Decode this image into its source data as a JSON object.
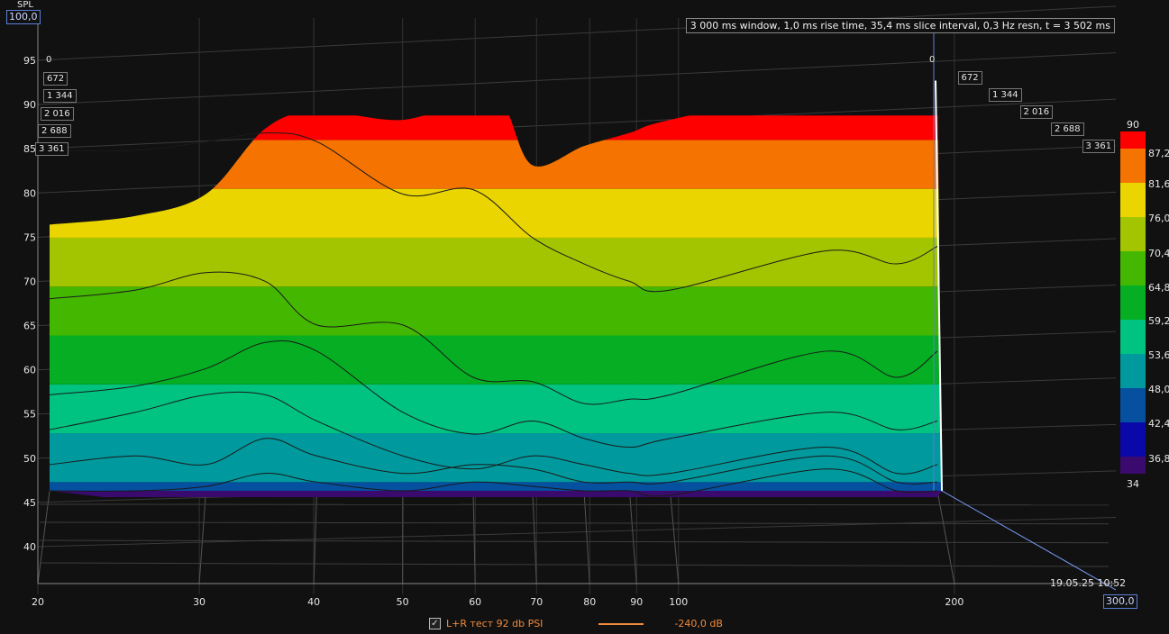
{
  "chart_data": {
    "type": "area",
    "title": "3 000 ms window, 1,0 ms rise time, 35,4 ms slice interval, 0,3 Hz resn, t = 3 502 ms",
    "ylabel": "SPL",
    "ylim": [
      35,
      100
    ],
    "y_max_label": "100,0",
    "y_ticks": [
      "95",
      "90",
      "85",
      "80",
      "75",
      "70",
      "65",
      "60",
      "55",
      "50",
      "45",
      "40"
    ],
    "y_tick_values": [
      95,
      90,
      85,
      80,
      75,
      70,
      65,
      60,
      55,
      50,
      45,
      40
    ],
    "x_scale": "log",
    "xlim": [
      20,
      300
    ],
    "x_max_label": "300,0",
    "x_ticks": [
      "20",
      "30",
      "40",
      "50",
      "60",
      "70",
      "80",
      "90",
      "100",
      "200"
    ],
    "x_tick_values": [
      20,
      30,
      40,
      50,
      60,
      70,
      80,
      90,
      100,
      200
    ],
    "time_ticks": [
      "0",
      "672",
      "1 344",
      "2 016",
      "2 688",
      "3 361"
    ],
    "time_tick_values": [
      0,
      672,
      1344,
      2016,
      2688,
      3361
    ],
    "colorbar": {
      "labels": [
        "90",
        "87,2",
        "81,6",
        "76,0",
        "70,4",
        "64,8",
        "59,2",
        "53,6",
        "48,0",
        "42,4",
        "36,8",
        "34"
      ],
      "levels": [
        34,
        36.8,
        42.4,
        48.0,
        53.6,
        59.2,
        64.8,
        70.4,
        76.0,
        81.6,
        87.2,
        90
      ],
      "colors": [
        "#3a0a6e",
        "#0a08a8",
        "#0650a0",
        "#00999d",
        "#00c381",
        "#05ae22",
        "#44b800",
        "#a3c500",
        "#ead500",
        "#f57300",
        "#ff0000"
      ]
    },
    "front_slice": {
      "x": [
        20,
        25,
        30,
        35,
        40,
        50,
        60,
        65,
        70,
        80,
        90,
        100,
        150,
        180,
        200
      ],
      "y": [
        77.5,
        78.5,
        81,
        88.5,
        90.5,
        89.5,
        92,
        91,
        84.3,
        86.5,
        88,
        89.5,
        93,
        91,
        94
      ]
    },
    "waterfall_slices": [
      {
        "x": [
          20,
          25,
          30,
          35,
          40,
          50,
          60,
          70,
          80,
          90,
          100,
          150,
          180,
          200
        ],
        "y": [
          86,
          86,
          87,
          88,
          87,
          81,
          81.5,
          76,
          73,
          71,
          70,
          74.5,
          73,
          75
        ]
      },
      {
        "x": [
          20,
          25,
          30,
          35,
          40,
          50,
          60,
          70,
          80,
          90,
          100,
          150,
          180,
          200
        ],
        "y": [
          69,
          70,
          72,
          71,
          66,
          66,
          60,
          59.5,
          57,
          57.5,
          58,
          63,
          60,
          63
        ]
      },
      {
        "x": [
          20,
          25,
          30,
          35,
          40,
          50,
          60,
          70,
          80,
          90,
          100,
          150,
          180,
          200
        ],
        "y": [
          58,
          59,
          61,
          64,
          63,
          56,
          53.5,
          55,
          53,
          52,
          53,
          56,
          54,
          55
        ]
      },
      {
        "x": [
          20,
          25,
          30,
          35,
          40,
          50,
          60,
          70,
          80,
          90,
          100,
          150,
          180,
          200
        ],
        "y": [
          54,
          56,
          58,
          58,
          55,
          51,
          49.5,
          51,
          50,
          49,
          49,
          52,
          49,
          50
        ]
      },
      {
        "x": [
          20,
          25,
          30,
          35,
          40,
          50,
          60,
          70,
          80,
          90,
          100,
          150,
          180,
          200
        ],
        "y": [
          50,
          51,
          50,
          53,
          51,
          49,
          50,
          49.5,
          48,
          48,
          48,
          51,
          48,
          48
        ]
      },
      {
        "x": [
          20,
          25,
          30,
          35,
          40,
          50,
          60,
          70,
          80,
          90,
          100,
          150,
          180,
          200
        ],
        "y": [
          47,
          47,
          47.5,
          49,
          48,
          47,
          48,
          47.5,
          47,
          47,
          46.5,
          49.5,
          47,
          47
        ]
      }
    ]
  },
  "timestamp": "19.05.25 10:52",
  "legend": {
    "checked": "✓",
    "series_name": "L+R тест 92 db PSI",
    "value": "-240,0 dB",
    "color": "#f08a3c"
  }
}
